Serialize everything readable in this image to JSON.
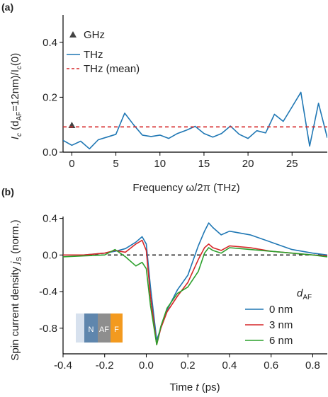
{
  "chart_data": [
    {
      "type": "line",
      "panel_label": "(a)",
      "xlabel": "Frequency ω/2π (THz)",
      "ylabel_main": "I",
      "ylabel_sub1": "c",
      "ylabel_mid": " (d",
      "ylabel_sub2": "AF",
      "ylabel_tail": "=12nm)/I",
      "ylabel_sub3": "c",
      "ylabel_end": "(0)",
      "xlim": [
        -1,
        29
      ],
      "ylim": [
        0,
        0.5
      ],
      "xticks": [
        0,
        5,
        10,
        15,
        20,
        25
      ],
      "xtick_labels": [
        "0",
        "5",
        "10",
        "15",
        "20",
        "25"
      ],
      "yticks": [
        0.0,
        0.2,
        0.4
      ],
      "ytick_labels": [
        "0.0",
        "0.2",
        "0.4"
      ],
      "legend": [
        "GHz",
        "THz",
        "THz (mean)"
      ],
      "series": [
        {
          "name": "GHz",
          "style": "marker",
          "color": "#444444",
          "x": [
            0
          ],
          "y": [
            0.098
          ]
        },
        {
          "name": "THz",
          "style": "line",
          "color": "#1f77b4",
          "x": [
            -1,
            0,
            1,
            2,
            3,
            4,
            5,
            6,
            7,
            8,
            9,
            10,
            11,
            12,
            13,
            14,
            15,
            16,
            17,
            18,
            19,
            20,
            21,
            22,
            23,
            24,
            25,
            26,
            27,
            28,
            29
          ],
          "y": [
            0.043,
            0.025,
            0.04,
            0.012,
            0.045,
            0.055,
            0.065,
            0.142,
            0.1,
            0.062,
            0.057,
            0.062,
            0.05,
            0.068,
            0.08,
            0.094,
            0.068,
            0.055,
            0.068,
            0.095,
            0.065,
            0.05,
            0.078,
            0.07,
            0.138,
            0.112,
            0.165,
            0.218,
            0.022,
            0.178,
            0.052
          ]
        },
        {
          "name": "THz (mean)",
          "style": "dashed",
          "color": "#d62728",
          "x": [
            -1,
            29
          ],
          "y": [
            0.092,
            0.092
          ]
        }
      ]
    },
    {
      "type": "line",
      "panel_label": "(b)",
      "xlabel_pre": "Time ",
      "xlabel_var": "t",
      "xlabel_post": " (ps)",
      "ylabel_pre": "Spin current density ",
      "ylabel_var": "j",
      "ylabel_sub": "S",
      "ylabel_post": " (norm.)",
      "xlim": [
        -0.4,
        0.87
      ],
      "ylim": [
        -1.08,
        0.42
      ],
      "xticks": [
        -0.4,
        -0.2,
        0.0,
        0.2,
        0.4,
        0.6,
        0.8
      ],
      "xtick_labels": [
        "-0.4",
        "-0.2",
        "0.0",
        "0.2",
        "0.4",
        "0.6",
        "0.8"
      ],
      "yticks": [
        0.4,
        0.0,
        -0.4,
        -0.8
      ],
      "ytick_labels": [
        "0.4",
        "0.0",
        "-0.4",
        "-0.8"
      ],
      "legend_title_main": "d",
      "legend_title_sub": "AF",
      "legend": [
        "0 nm",
        "3 nm",
        "6 nm"
      ],
      "zero_line": {
        "y": 0,
        "style": "dashed",
        "color": "#000000"
      },
      "inset_layers": [
        "N",
        "AF",
        "F"
      ],
      "series": [
        {
          "name": "0 nm",
          "color": "#1f77b4",
          "x": [
            -0.4,
            -0.3,
            -0.2,
            -0.15,
            -0.1,
            -0.05,
            -0.02,
            0.0,
            0.02,
            0.05,
            0.07,
            0.1,
            0.15,
            0.2,
            0.25,
            0.28,
            0.3,
            0.32,
            0.36,
            0.4,
            0.5,
            0.6,
            0.7,
            0.8,
            0.87
          ],
          "y": [
            0.0,
            0.0,
            0.02,
            0.04,
            0.07,
            0.14,
            0.2,
            0.12,
            -0.35,
            -0.93,
            -0.8,
            -0.6,
            -0.38,
            -0.22,
            0.1,
            0.26,
            0.35,
            0.3,
            0.22,
            0.26,
            0.22,
            0.14,
            0.06,
            0.02,
            0.0
          ]
        },
        {
          "name": "3 nm",
          "color": "#d62728",
          "x": [
            -0.4,
            -0.3,
            -0.2,
            -0.15,
            -0.1,
            -0.05,
            -0.02,
            0.0,
            0.02,
            0.05,
            0.07,
            0.1,
            0.15,
            0.2,
            0.25,
            0.28,
            0.3,
            0.32,
            0.36,
            0.4,
            0.5,
            0.6,
            0.7,
            0.8,
            0.87
          ],
          "y": [
            0.0,
            0.0,
            0.02,
            0.05,
            0.03,
            0.12,
            0.16,
            0.05,
            -0.45,
            -0.98,
            -0.8,
            -0.62,
            -0.45,
            -0.3,
            -0.05,
            0.08,
            0.12,
            0.08,
            0.05,
            0.1,
            0.08,
            0.04,
            0.02,
            0.0,
            -0.01
          ]
        },
        {
          "name": "6 nm",
          "color": "#2ca02c",
          "x": [
            -0.4,
            -0.3,
            -0.2,
            -0.15,
            -0.1,
            -0.05,
            -0.02,
            0.0,
            0.02,
            0.05,
            0.07,
            0.1,
            0.15,
            0.2,
            0.25,
            0.28,
            0.3,
            0.32,
            0.36,
            0.4,
            0.5,
            0.6,
            0.7,
            0.8,
            0.87
          ],
          "y": [
            -0.02,
            -0.01,
            0.0,
            0.06,
            -0.02,
            -0.12,
            -0.08,
            -0.15,
            -0.55,
            -0.98,
            -0.78,
            -0.58,
            -0.42,
            -0.35,
            -0.18,
            0.02,
            0.08,
            0.05,
            0.02,
            0.08,
            0.06,
            0.04,
            0.02,
            0.0,
            -0.02
          ]
        }
      ]
    }
  ]
}
